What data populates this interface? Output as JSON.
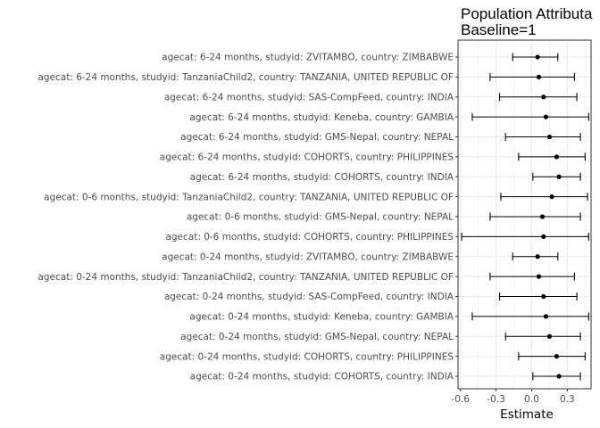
{
  "chart_data": {
    "type": "forest",
    "title": "Population Attributa",
    "subtitle": "Baseline=1",
    "xlabel": "Estimate",
    "ylabel": "",
    "xlim": [
      -0.62,
      0.5
    ],
    "x_ticks": [
      -0.6,
      -0.3,
      0.0,
      0.3
    ],
    "x_tick_labels": [
      "-0.6",
      "-0.3",
      "0.0",
      "0.3"
    ],
    "grid": true,
    "colors": {
      "point": "#000000",
      "errorbar": "#000000",
      "grid": "#ebebeb",
      "panel_border": "#333333"
    },
    "rows": [
      {
        "label": "agecat: 6-24 months, studyid: ZVITAMBO, country: ZIMBABWE",
        "estimate": 0.05,
        "lower": -0.16,
        "upper": 0.22
      },
      {
        "label": "agecat: 6-24 months, studyid: TanzaniaChild2, country: TANZANIA, UNITED REPUBLIC OF",
        "estimate": 0.06,
        "lower": -0.35,
        "upper": 0.36
      },
      {
        "label": "agecat: 6-24 months, studyid: SAS-CompFeed, country: INDIA",
        "estimate": 0.1,
        "lower": -0.27,
        "upper": 0.38
      },
      {
        "label": "agecat: 6-24 months, studyid: Keneba, country: GAMBIA",
        "estimate": 0.12,
        "lower": -0.5,
        "upper": 0.48
      },
      {
        "label": "agecat: 6-24 months, studyid: GMS-Nepal, country: NEPAL",
        "estimate": 0.15,
        "lower": -0.22,
        "upper": 0.41
      },
      {
        "label": "agecat: 6-24 months, studyid: COHORTS, country: PHILIPPINES",
        "estimate": 0.21,
        "lower": -0.11,
        "upper": 0.45
      },
      {
        "label": "agecat: 6-24 months, studyid: COHORTS, country: INDIA",
        "estimate": 0.23,
        "lower": 0.01,
        "upper": 0.41
      },
      {
        "label": "agecat: 0-6 months, studyid: TanzaniaChild2, country: TANZANIA, UNITED REPUBLIC OF",
        "estimate": 0.17,
        "lower": -0.26,
        "upper": 0.47
      },
      {
        "label": "agecat: 0-6 months, studyid: GMS-Nepal, country: NEPAL",
        "estimate": 0.09,
        "lower": -0.35,
        "upper": 0.41
      },
      {
        "label": "agecat: 0-6 months, studyid: COHORTS, country: PHILIPPINES",
        "estimate": 0.1,
        "lower": -0.59,
        "upper": 0.48
      },
      {
        "label": "agecat: 0-24 months, studyid: ZVITAMBO, country: ZIMBABWE",
        "estimate": 0.05,
        "lower": -0.16,
        "upper": 0.22
      },
      {
        "label": "agecat: 0-24 months, studyid: TanzaniaChild2, country: TANZANIA, UNITED REPUBLIC OF",
        "estimate": 0.06,
        "lower": -0.35,
        "upper": 0.36
      },
      {
        "label": "agecat: 0-24 months, studyid: SAS-CompFeed, country: INDIA",
        "estimate": 0.1,
        "lower": -0.27,
        "upper": 0.38
      },
      {
        "label": "agecat: 0-24 months, studyid: Keneba, country: GAMBIA",
        "estimate": 0.12,
        "lower": -0.5,
        "upper": 0.48
      },
      {
        "label": "agecat: 0-24 months, studyid: GMS-Nepal, country: NEPAL",
        "estimate": 0.15,
        "lower": -0.22,
        "upper": 0.41
      },
      {
        "label": "agecat: 0-24 months, studyid: COHORTS, country: PHILIPPINES",
        "estimate": 0.21,
        "lower": -0.11,
        "upper": 0.45
      },
      {
        "label": "agecat: 0-24 months, studyid: COHORTS, country: INDIA",
        "estimate": 0.23,
        "lower": 0.01,
        "upper": 0.41
      }
    ]
  }
}
